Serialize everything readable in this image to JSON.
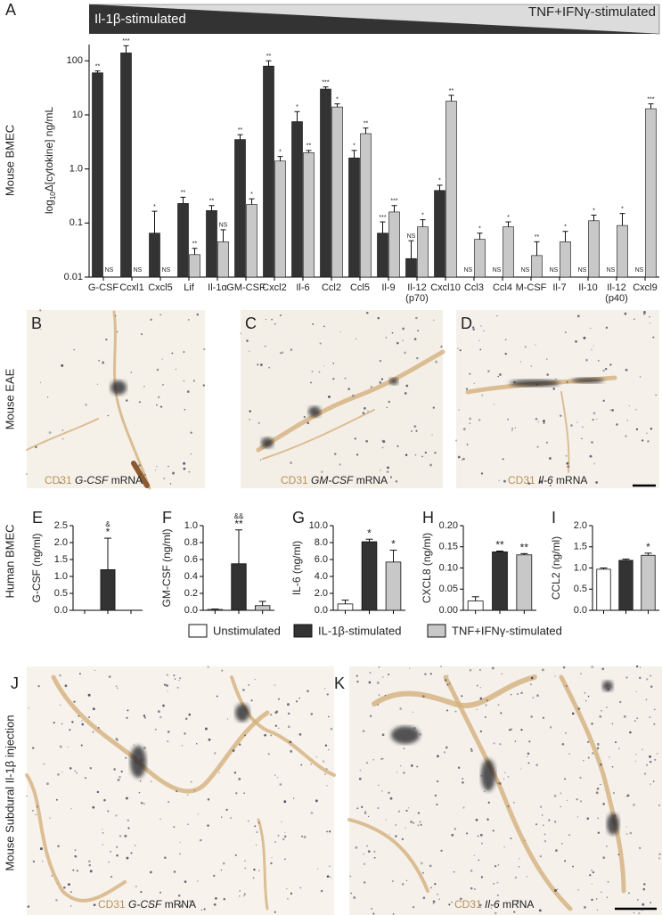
{
  "chart_data": [
    {
      "type": "bar",
      "label": "A",
      "row_label": "Mouse BMEC",
      "y_label": {
        "prefix": "log",
        "sub": "10",
        "rest": "Δ[cytokine] ng/mL"
      },
      "log_y": true,
      "ylim": [
        0.01,
        200
      ],
      "yticks": [
        0.01,
        0.1,
        {
          "value": 1,
          "label": "1.0"
        },
        10,
        100
      ],
      "categories": [
        "G-CSF",
        "Ccxl1",
        "Cxcl5",
        "Lif",
        "Il-1α",
        "GM-CSF",
        "Cxcl2",
        "Il-6",
        "Ccl2",
        "Ccl5",
        "Il-9",
        "Il-12 (p70)",
        "Cxcl10",
        "Ccl3",
        "Ccl4",
        "M-CSF",
        "Il-7",
        "Il-10",
        "Il-12 (p40)",
        "Cxcl9"
      ],
      "series": [
        {
          "name": "Il-1β-stimulated",
          "color": "#333333",
          "values": [
            60,
            140,
            0.065,
            0.23,
            0.17,
            3.5,
            80,
            7.5,
            30,
            1.6,
            0.065,
            0.022,
            0.4,
            null,
            null,
            null,
            null,
            null,
            null,
            null
          ],
          "errors": [
            5,
            50,
            0.1,
            0.07,
            0.04,
            0.8,
            20,
            4,
            3,
            0.6,
            0.04,
            0.025,
            0.1,
            null,
            null,
            null,
            null,
            null,
            null,
            null
          ],
          "significance": [
            "**",
            "***",
            "*",
            "**",
            "**",
            "**",
            "**",
            "*",
            "***",
            "*",
            "***",
            "NS",
            "*",
            "NS",
            "NS",
            "NS",
            "NS",
            "NS",
            "NS",
            "NS"
          ]
        },
        {
          "name": "TNF+IFNγ-stimulated",
          "color": "#c8c8c8",
          "values": [
            null,
            null,
            null,
            0.026,
            0.045,
            0.22,
            1.4,
            2.0,
            14,
            4.5,
            0.16,
            0.085,
            18,
            0.05,
            0.085,
            0.025,
            0.045,
            0.11,
            0.09,
            13
          ],
          "errors": [
            null,
            null,
            null,
            0.008,
            0.03,
            0.06,
            0.3,
            0.2,
            2,
            1.2,
            0.05,
            0.03,
            5,
            0.015,
            0.02,
            0.02,
            0.025,
            0.03,
            0.06,
            3
          ],
          "significance": [
            "NS",
            "NS",
            "NS",
            "**",
            "NS",
            "*",
            "*",
            "**",
            "*",
            "**",
            "***",
            "*",
            "**",
            "*",
            "*",
            "**",
            "*",
            "*",
            "*",
            "***"
          ]
        }
      ]
    },
    {
      "type": "bar",
      "label": "E",
      "row_label": "Human BMEC",
      "y_label": "G-CSF (ng/ml)",
      "ylim": [
        0,
        2.5
      ],
      "yticks": [
        {
          "value": 0,
          "label": "0.0"
        },
        0.5,
        {
          "value": 1,
          "label": "1.0"
        },
        1.5,
        {
          "value": 2,
          "label": "2.0"
        },
        2.5
      ],
      "colors": [
        "#ffffff",
        "#333333",
        "#c8c8c8"
      ],
      "values": [
        null,
        1.2,
        null
      ],
      "errors": [
        null,
        0.93,
        null
      ],
      "significance": [
        null,
        "*",
        null
      ],
      "human_significance": [
        null,
        "&",
        null
      ]
    },
    {
      "type": "bar",
      "label": "F",
      "y_label": "GM-CSF (ng/ml)",
      "ylim": [
        0,
        1
      ],
      "yticks": [
        {
          "value": 0,
          "label": "0.0"
        },
        0.2,
        0.4,
        0.6,
        0.8,
        {
          "value": 1,
          "label": "1.0"
        }
      ],
      "colors": [
        "#ffffff",
        "#333333",
        "#c8c8c8"
      ],
      "values": [
        0.01,
        0.55,
        0.055
      ],
      "errors": [
        0.005,
        0.4,
        0.05
      ],
      "significance": [
        null,
        "**",
        null
      ],
      "human_significance": [
        null,
        "&&",
        null
      ]
    },
    {
      "type": "bar",
      "label": "G",
      "y_label": "IL-6 (ng/ml)",
      "ylim": [
        0,
        10
      ],
      "yticks": [
        {
          "value": 0,
          "label": "0.0"
        },
        {
          "value": 2,
          "label": "2.0"
        },
        {
          "value": 4,
          "label": "4.0"
        },
        {
          "value": 6,
          "label": "6.0"
        },
        {
          "value": 8,
          "label": "8.0"
        },
        {
          "value": 10,
          "label": "10.0"
        }
      ],
      "colors": [
        "#ffffff",
        "#333333",
        "#c8c8c8"
      ],
      "values": [
        0.75,
        8.1,
        5.7
      ],
      "errors": [
        0.45,
        0.3,
        1.4
      ],
      "significance": [
        null,
        "*",
        "*"
      ]
    },
    {
      "type": "bar",
      "label": "H",
      "y_label": "CXCL8 (ng/ml)",
      "ylim": [
        0,
        0.2
      ],
      "yticks": [
        {
          "value": 0,
          "label": "0.00"
        },
        0.05,
        {
          "value": 0.1,
          "label": "0.10"
        },
        0.15,
        {
          "value": 0.2,
          "label": "0.20"
        }
      ],
      "colors": [
        "#ffffff",
        "#333333",
        "#c8c8c8"
      ],
      "values": [
        0.022,
        0.138,
        0.131
      ],
      "errors": [
        0.01,
        0.002,
        0.003
      ],
      "significance": [
        null,
        "**",
        "**"
      ]
    },
    {
      "type": "bar",
      "label": "I",
      "y_label": "CCL2 (ng/ml)",
      "ylim": [
        0,
        2
      ],
      "yticks": [
        {
          "value": 0,
          "label": "0.0"
        },
        0.5,
        {
          "value": 1,
          "label": "1.0"
        },
        1.5,
        {
          "value": 2,
          "label": "2.0"
        }
      ],
      "colors": [
        "#ffffff",
        "#333333",
        "#c8c8c8"
      ],
      "values": [
        0.97,
        1.18,
        1.3
      ],
      "errors": [
        0.03,
        0.03,
        0.05
      ],
      "significance": [
        null,
        null,
        "*"
      ]
    }
  ],
  "legend": [
    {
      "name": "Unstimulated",
      "color": "#ffffff"
    },
    {
      "name": "IL-1β-stimulated",
      "color": "#333333"
    },
    {
      "name": "TNF+IFNγ-stimulated",
      "color": "#c8c8c8"
    }
  ],
  "image_rows": [
    {
      "row_label": "Mouse EAE",
      "panels": [
        {
          "label": "B",
          "stain": "CD31",
          "gene": "G-CSF",
          "suffix": "mRNA"
        },
        {
          "label": "C",
          "stain": "CD31",
          "gene": "GM-CSF",
          "suffix": "mRNA"
        },
        {
          "label": "D",
          "stain": "CD31",
          "gene": "Il-6",
          "suffix": "mRNA"
        }
      ]
    },
    {
      "row_label": "Mouse Subdural Il-1β injection",
      "panels": [
        {
          "label": "J",
          "stain": "CD31",
          "gene": "G-CSF",
          "suffix": "mRNA"
        },
        {
          "label": "K",
          "stain": "CD31",
          "gene": "Il-6",
          "suffix": "mRNA"
        }
      ]
    }
  ]
}
